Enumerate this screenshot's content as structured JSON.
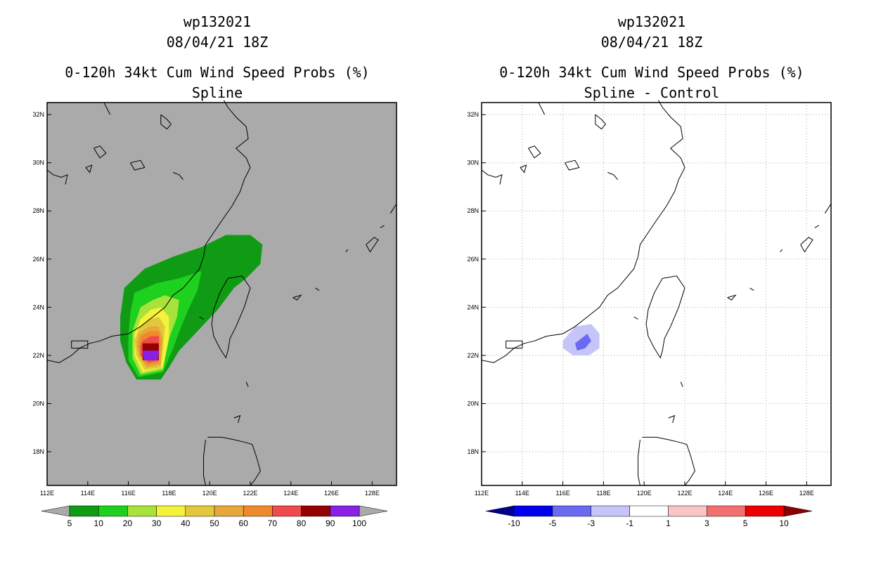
{
  "colors": {
    "land_bg": "#aaaaaa",
    "green_dark": "#0f9c14",
    "green": "#1fd11f",
    "yellowgreen": "#a8e23a",
    "yellow": "#f4f23a",
    "gold": "#e2c93b",
    "amber": "#e6a839",
    "orange": "#ee8a2b",
    "red": "#f04a4a",
    "darkred": "#950000",
    "purple": "#8a1fe6",
    "grid": "#aaaaaa",
    "diff_darkblue": "#00008c",
    "diff_blue": "#0000ee",
    "diff_midblue": "#6b6bf2",
    "diff_lightblue": "#c5c5fa",
    "diff_white": "#ffffff",
    "diff_lightpink": "#fac5c5",
    "diff_pink": "#f27070",
    "diff_red": "#ee0000",
    "diff_darkred": "#8c0000"
  },
  "chart_data": [
    {
      "type": "heatmap",
      "id_line": "wp132021",
      "date_line": "08/04/21 18Z",
      "title": "0-120h 34kt Cum Wind Speed Probs (%)",
      "subtitle": "Spline",
      "units": "%",
      "lon_range": [
        112,
        129.2
      ],
      "lat_range": [
        16.6,
        32.5
      ],
      "x_ticks": [
        "112E",
        "114E",
        "116E",
        "118E",
        "120E",
        "122E",
        "124E",
        "126E",
        "128E"
      ],
      "x_tick_values": [
        112,
        114,
        116,
        118,
        120,
        122,
        124,
        126,
        128
      ],
      "y_ticks": [
        "18N",
        "20N",
        "22N",
        "24N",
        "26N",
        "28N",
        "30N",
        "32N"
      ],
      "y_tick_values": [
        18,
        20,
        22,
        24,
        26,
        28,
        30,
        32
      ],
      "grid": false,
      "colorbar": {
        "labels": [
          "5",
          "10",
          "20",
          "30",
          "40",
          "50",
          "60",
          "70",
          "80",
          "90",
          "100"
        ],
        "colors": [
          "#0f9c14",
          "#1fd11f",
          "#a8e23a",
          "#f4f23a",
          "#e2c93b",
          "#e6a839",
          "#ee8a2b",
          "#f04a4a",
          "#950000",
          "#8a1fe6"
        ],
        "extend_colors": [
          "#aaaaaa",
          "#aaaaaa"
        ]
      },
      "contours": [
        {
          "level": 5,
          "color": "#0f9c14",
          "points": [
            [
              115.8,
              24.8
            ],
            [
              116.8,
              25.6
            ],
            [
              118.2,
              26.1
            ],
            [
              119.6,
              26.5
            ],
            [
              120.8,
              27.0
            ],
            [
              122.0,
              27.0
            ],
            [
              122.6,
              26.6
            ],
            [
              122.5,
              25.8
            ],
            [
              121.8,
              25.2
            ],
            [
              121.2,
              24.8
            ],
            [
              120.4,
              23.9
            ],
            [
              119.4,
              23.0
            ],
            [
              118.5,
              22.2
            ],
            [
              118.0,
              21.5
            ],
            [
              117.6,
              21.0
            ],
            [
              116.4,
              21.0
            ],
            [
              115.9,
              21.7
            ],
            [
              115.6,
              22.6
            ],
            [
              115.6,
              23.6
            ]
          ]
        },
        {
          "level": 10,
          "color": "#1fd11f",
          "points": [
            [
              116.3,
              24.6
            ],
            [
              117.4,
              25.0
            ],
            [
              118.5,
              25.2
            ],
            [
              119.6,
              25.5
            ],
            [
              119.4,
              24.7
            ],
            [
              119.0,
              24.0
            ],
            [
              118.6,
              23.2
            ],
            [
              118.2,
              22.3
            ],
            [
              117.7,
              21.3
            ],
            [
              116.5,
              21.1
            ],
            [
              116.0,
              21.8
            ],
            [
              116.0,
              22.8
            ],
            [
              116.1,
              23.8
            ]
          ]
        },
        {
          "level": 20,
          "color": "#a8e23a",
          "points": [
            [
              116.6,
              24.0
            ],
            [
              117.2,
              24.3
            ],
            [
              117.8,
              24.5
            ],
            [
              118.5,
              24.3
            ],
            [
              118.4,
              23.6
            ],
            [
              118.0,
              22.7
            ],
            [
              117.7,
              21.4
            ],
            [
              116.6,
              21.2
            ],
            [
              116.2,
              21.9
            ],
            [
              116.2,
              23.0
            ]
          ]
        },
        {
          "level": 30,
          "color": "#f4f23a",
          "points": [
            [
              116.6,
              23.5
            ],
            [
              117.1,
              23.9
            ],
            [
              117.6,
              24.0
            ],
            [
              118.0,
              23.6
            ],
            [
              118.0,
              22.7
            ],
            [
              117.7,
              21.5
            ],
            [
              116.7,
              21.3
            ],
            [
              116.3,
              22.0
            ],
            [
              116.3,
              22.9
            ]
          ]
        },
        {
          "level": 40,
          "color": "#e2c93b",
          "points": [
            [
              116.5,
              23.1
            ],
            [
              117.0,
              23.5
            ],
            [
              117.5,
              23.6
            ],
            [
              117.8,
              23.2
            ],
            [
              117.7,
              22.3
            ],
            [
              117.6,
              21.5
            ],
            [
              116.8,
              21.4
            ],
            [
              116.4,
              22.0
            ],
            [
              116.3,
              22.6
            ]
          ]
        },
        {
          "level": 50,
          "color": "#e6a839",
          "points": [
            [
              116.5,
              22.9
            ],
            [
              117.0,
              23.2
            ],
            [
              117.5,
              23.2
            ],
            [
              117.7,
              22.7
            ],
            [
              117.6,
              21.6
            ],
            [
              116.9,
              21.5
            ],
            [
              116.5,
              22.0
            ],
            [
              116.4,
              22.5
            ]
          ]
        },
        {
          "level": 60,
          "color": "#ee8a2b",
          "points": [
            [
              116.6,
              22.8
            ],
            [
              117.0,
              23.0
            ],
            [
              117.5,
              23.0
            ],
            [
              117.6,
              22.6
            ],
            [
              117.5,
              21.7
            ],
            [
              116.9,
              21.6
            ],
            [
              116.6,
              22.0
            ],
            [
              116.5,
              22.4
            ]
          ]
        },
        {
          "level": 70,
          "color": "#f04a4a",
          "points": [
            [
              116.7,
              22.6
            ],
            [
              117.1,
              22.8
            ],
            [
              117.5,
              22.8
            ],
            [
              117.5,
              22.4
            ],
            [
              117.5,
              21.8
            ],
            [
              117.0,
              21.7
            ],
            [
              116.6,
              22.0
            ],
            [
              116.6,
              22.4
            ]
          ]
        },
        {
          "level": 80,
          "color": "#950000",
          "points": [
            [
              116.7,
              22.5
            ],
            [
              117.5,
              22.5
            ],
            [
              117.5,
              21.8
            ],
            [
              116.7,
              21.8
            ]
          ]
        },
        {
          "level": 90,
          "color": "#8a1fe6",
          "points": [
            [
              116.7,
              22.2
            ],
            [
              117.5,
              22.2
            ],
            [
              117.45,
              21.8
            ],
            [
              116.75,
              21.8
            ]
          ]
        }
      ]
    },
    {
      "type": "heatmap",
      "id_line": "wp132021",
      "date_line": "08/04/21 18Z",
      "title": "0-120h 34kt Cum Wind Speed Probs (%)",
      "subtitle": "Spline - Control",
      "units": "%",
      "lon_range": [
        112,
        129.2
      ],
      "lat_range": [
        16.6,
        32.5
      ],
      "x_ticks": [
        "112E",
        "114E",
        "116E",
        "118E",
        "120E",
        "122E",
        "124E",
        "126E",
        "128E"
      ],
      "x_tick_values": [
        112,
        114,
        116,
        118,
        120,
        122,
        124,
        126,
        128
      ],
      "y_ticks": [
        "18N",
        "20N",
        "22N",
        "24N",
        "26N",
        "28N",
        "30N",
        "32N"
      ],
      "y_tick_values": [
        18,
        20,
        22,
        24,
        26,
        28,
        30,
        32
      ],
      "grid": true,
      "colorbar": {
        "labels": [
          "-10",
          "-5",
          "-3",
          "-1",
          "1",
          "3",
          "5",
          "10"
        ],
        "colors": [
          "#0000ee",
          "#6b6bf2",
          "#c5c5fa",
          "#ffffff",
          "#fac5c5",
          "#f27070",
          "#ee0000"
        ],
        "extend_colors": [
          "#00008c",
          "#8c0000"
        ]
      },
      "contours": [
        {
          "level": -1,
          "color": "#c5c5fa",
          "points": [
            [
              116.0,
              22.6
            ],
            [
              116.6,
              23.2
            ],
            [
              117.4,
              23.3
            ],
            [
              117.8,
              22.9
            ],
            [
              117.8,
              22.3
            ],
            [
              117.3,
              22.0
            ],
            [
              116.5,
              22.0
            ],
            [
              116.0,
              22.3
            ]
          ]
        },
        {
          "level": -3,
          "color": "#6b6bf2",
          "points": [
            [
              116.6,
              22.5
            ],
            [
              117.2,
              22.9
            ],
            [
              117.4,
              22.6
            ],
            [
              117.1,
              22.3
            ],
            [
              116.7,
              22.2
            ]
          ]
        }
      ]
    }
  ]
}
